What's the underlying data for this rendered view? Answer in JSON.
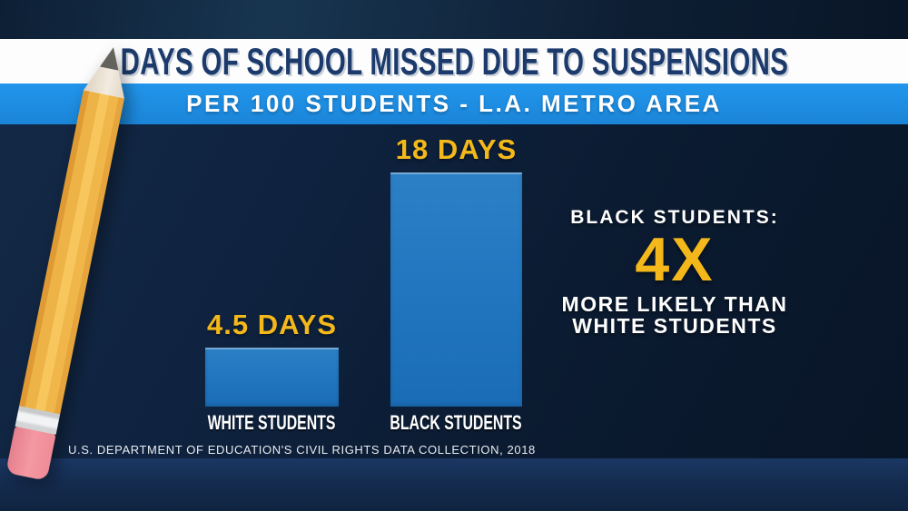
{
  "header": {
    "title": "DAYS OF SCHOOL MISSED DUE TO SUSPENSIONS",
    "subtitle": "PER 100 STUDENTS - L.A. METRO AREA"
  },
  "chart_data": {
    "type": "bar",
    "title": "DAYS OF SCHOOL MISSED DUE TO SUSPENSIONS",
    "subtitle": "PER 100 STUDENTS - L.A. METRO AREA",
    "categories": [
      "WHITE STUDENTS",
      "BLACK STUDENTS"
    ],
    "values": [
      4.5,
      18
    ],
    "value_labels": [
      "4.5 DAYS",
      "18 DAYS"
    ],
    "unit": "days",
    "ylim": [
      0,
      18
    ],
    "grid": false,
    "legend": "none",
    "bar_color": "#1f74bd",
    "value_label_color": "#f4b81b"
  },
  "annotation": {
    "line1": "BLACK STUDENTS:",
    "multiplier": "4X",
    "line2": "MORE LIKELY THAN",
    "line3": "WHITE STUDENTS"
  },
  "source": "U.S. DEPARTMENT OF EDUCATION'S CIVIL RIGHTS DATA COLLECTION, 2018",
  "colors": {
    "gold": "#f4b81b",
    "band_blue": "#1e8de4",
    "title_navy": "#1c3a6b",
    "bar_blue": "#1f74bd",
    "background_navy": "#0e2138"
  },
  "decorations": {
    "pencil": "pencil-illustration"
  }
}
